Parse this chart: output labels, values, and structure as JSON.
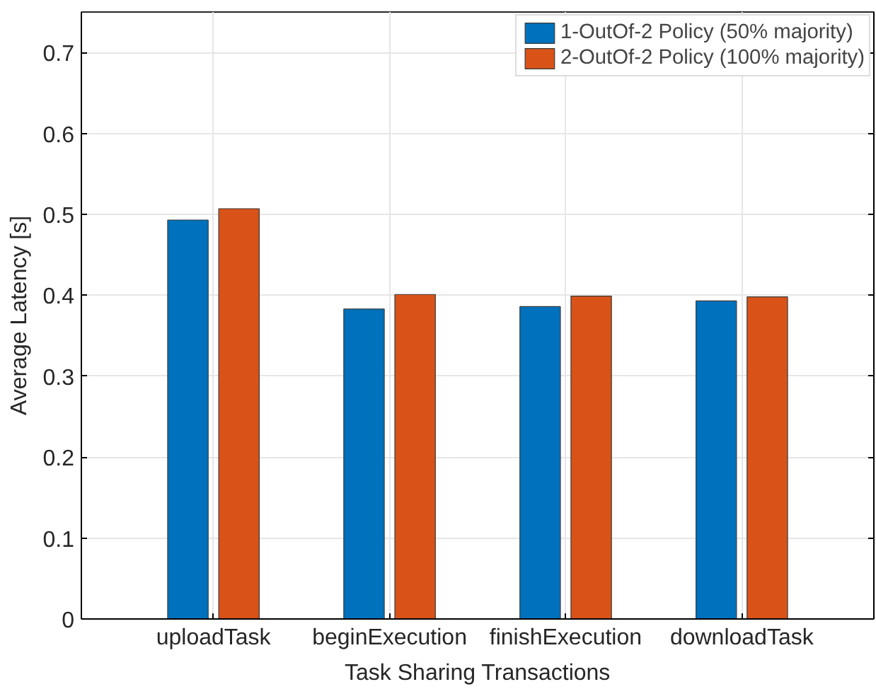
{
  "chart_data": {
    "type": "bar",
    "xlabel": "Task Sharing Transactions",
    "ylabel": "Average Latency [s]",
    "categories": [
      "uploadTask",
      "beginExecution",
      "finishExecution",
      "downloadTask"
    ],
    "series": [
      {
        "name": "1-OutOf-2 Policy (50% majority)",
        "color": "#0072bd",
        "values": [
          0.493,
          0.383,
          0.386,
          0.393
        ]
      },
      {
        "name": "2-OutOf-2 Policy (100% majority)",
        "color": "#d95319",
        "values": [
          0.507,
          0.401,
          0.399,
          0.398
        ]
      }
    ],
    "ylim": [
      0,
      0.75
    ],
    "yticks": [
      0,
      0.1,
      0.2,
      0.3,
      0.4,
      0.5,
      0.6,
      0.7
    ],
    "grid": true,
    "legend": "top right"
  }
}
